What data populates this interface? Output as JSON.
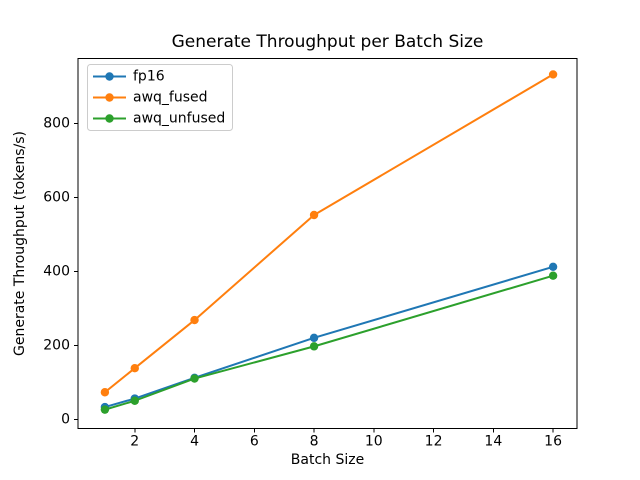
{
  "figure": {
    "background_color": "#ffffff",
    "spine_color": "#000000",
    "legend_border_color": "#cccccc"
  },
  "chart_data": {
    "type": "line",
    "title": "Generate Throughput per Batch Size",
    "xlabel": "Batch Size",
    "ylabel": "Generate Throughput (tokens/s)",
    "x": [
      1,
      2,
      4,
      8,
      16
    ],
    "series": [
      {
        "name": "fp16",
        "color": "#1f77b4",
        "marker": "o",
        "values": [
          33,
          56,
          112,
          220,
          412
        ]
      },
      {
        "name": "awq_fused",
        "color": "#ff7f0e",
        "marker": "o",
        "values": [
          73,
          138,
          268,
          552,
          932
        ]
      },
      {
        "name": "awq_unfused",
        "color": "#2ca02c",
        "marker": "o",
        "values": [
          26,
          50,
          110,
          197,
          388
        ]
      }
    ],
    "xticks": [
      2,
      4,
      6,
      8,
      10,
      12,
      14,
      16
    ],
    "yticks": [
      0,
      200,
      400,
      600,
      800
    ],
    "xlim": [
      0.1,
      16.8
    ],
    "ylim": [
      -25,
      975
    ],
    "grid": false,
    "legend_position": "upper left",
    "legend_labels": [
      "fp16",
      "awq_fused",
      "awq_unfused"
    ]
  }
}
